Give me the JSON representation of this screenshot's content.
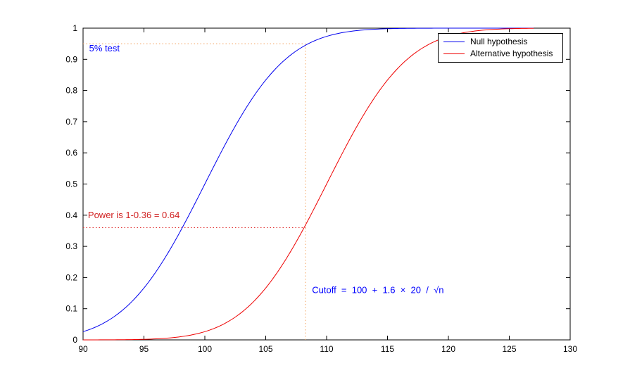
{
  "figure": {
    "background": "#ffffff",
    "axis_color": "#000000"
  },
  "chart_data": {
    "type": "line",
    "title": "",
    "xlabel": "",
    "ylabel": "",
    "xlim": [
      90,
      130
    ],
    "ylim": [
      0,
      1
    ],
    "xticks": [
      90,
      95,
      100,
      105,
      110,
      115,
      120,
      125,
      130
    ],
    "yticks": [
      0,
      0.1,
      0.2,
      0.3,
      0.4,
      0.5,
      0.6,
      0.7,
      0.8,
      0.9,
      1
    ],
    "grid": false,
    "legend_position": "top-right",
    "series": [
      {
        "name": "Null hypothesis",
        "color": "#0000ee",
        "model": "normal_cdf",
        "mean": 100,
        "sd": 5.164,
        "x_start": 90,
        "x_end": 127
      },
      {
        "name": "Alternative hypothesis",
        "color": "#ee0000",
        "model": "normal_cdf",
        "mean": 110,
        "sd": 5.164,
        "x_start": 90,
        "x_end": 127
      }
    ],
    "annotations": {
      "cutoff_x": 108.26,
      "significance_level_y": 0.95,
      "power_y": 0.36,
      "guide_color_significance": "#f4a460",
      "guide_color_power": "#e03030",
      "labels": [
        {
          "text": "5% test",
          "color": "#0000ff",
          "x": 90.5,
          "y": 0.925
        },
        {
          "text": "Power is 1-0.36 = 0.64",
          "color": "#d02020",
          "x": 90.4,
          "y": 0.39
        },
        {
          "text": "Cutoff  =  100  +  1.6  ×  20  /  √n",
          "color": "#0000ff",
          "x": 108.8,
          "y": 0.15
        }
      ]
    }
  },
  "legend": {
    "items": [
      {
        "label": "Null hypothesis",
        "color": "#0000ee"
      },
      {
        "label": "Alternative hypothesis",
        "color": "#ee0000"
      }
    ]
  }
}
